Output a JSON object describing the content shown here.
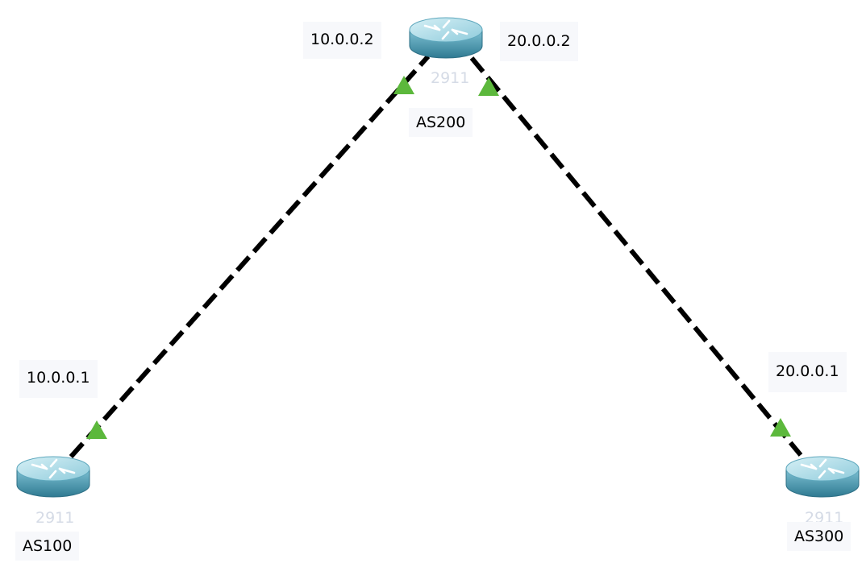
{
  "colors": {
    "link": "#000000",
    "port_up": "#5cb83c",
    "label_bg": "#f7f8fb",
    "router_body": "#4f9db4",
    "router_top": "#a9dbe7",
    "faint_text": "#d5dbe6"
  },
  "devices": [
    {
      "id": "r-as200",
      "icon": "router-icon",
      "model": "2911",
      "name": "AS200"
    },
    {
      "id": "r-as100",
      "icon": "router-icon",
      "model": "2911",
      "name": "AS100"
    },
    {
      "id": "r-as300",
      "icon": "router-icon",
      "model": "2911",
      "name": "AS300"
    }
  ],
  "links": [
    {
      "from": "r-as100",
      "to": "r-as200",
      "from_ip": "10.0.0.1",
      "to_ip": "10.0.0.2",
      "style": "dashed"
    },
    {
      "from": "r-as200",
      "to": "r-as300",
      "from_ip": "20.0.0.2",
      "to_ip": "20.0.0.1",
      "style": "dashed"
    }
  ]
}
